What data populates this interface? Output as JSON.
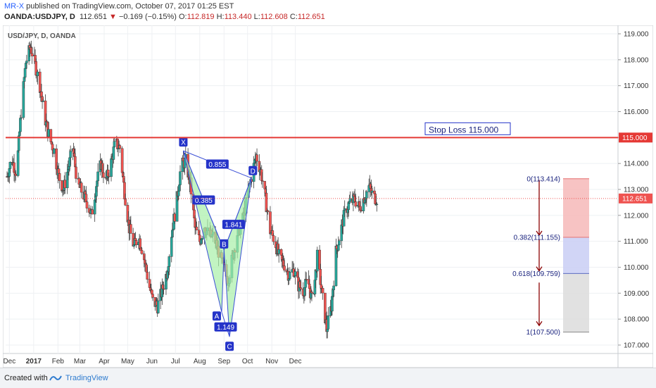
{
  "header": {
    "author": "MR-X",
    "published": "published on TradingView.com, October 07, 2017 01:25 EST",
    "symbol": "OANDA:USDJPY, D",
    "last": "112.651",
    "change": "−0.169 (−0.15%)",
    "o_label": "O:",
    "o_value": "112.819",
    "h_label": "H:",
    "h_value": "113.440",
    "l_label": "L:",
    "l_value": "112.608",
    "c_label": "C:",
    "c_value": "112.651"
  },
  "footer": {
    "created": "Created with",
    "brand": "TradingView"
  },
  "colors": {
    "up": "#26a69a",
    "down": "#ef5350",
    "pattern_fill": "#a8f0a8",
    "pattern_line": "#3a4fd6",
    "stop": "#e53935",
    "fib_arrow": "#8b0000"
  },
  "chart_data": {
    "type": "candlestick",
    "instrument_label": "USD/JPY, D, OANDA",
    "price_axis": {
      "min": 107.0,
      "max": 119.0,
      "ticks": [
        "119.000",
        "118.000",
        "117.000",
        "116.000",
        "115.000",
        "114.000",
        "113.000",
        "112.000",
        "111.000",
        "110.000",
        "109.000",
        "108.000",
        "107.000"
      ]
    },
    "time_axis": {
      "labels": [
        "Dec",
        "2017",
        "Feb",
        "Mar",
        "Apr",
        "May",
        "Jun",
        "Jul",
        "Aug",
        "Sep",
        "Oct",
        "Nov",
        "Dec"
      ],
      "bold_labels": [
        "2017"
      ]
    },
    "price_tags": [
      {
        "value": 115.0,
        "text": "115.000",
        "color": "#e53935"
      },
      {
        "value": 112.651,
        "text": "112.651",
        "color": "#ef5350"
      }
    ],
    "stop_loss": {
      "value": 115.0,
      "label": "Stop Loss 115.000"
    },
    "last_price": 112.651,
    "pattern": {
      "points": [
        {
          "name": "X",
          "date": "2017-07-11",
          "price": 114.49
        },
        {
          "name": "A",
          "date": "2017-08-29",
          "price": 108.27
        },
        {
          "name": "B",
          "date": "2017-09-01",
          "price": 110.67
        },
        {
          "name": "C",
          "date": "2017-09-08",
          "price": 107.32
        },
        {
          "name": "D",
          "date": "2017-10-06",
          "price": 113.44
        }
      ],
      "ratios": [
        {
          "text": "0.855",
          "at": "X-D"
        },
        {
          "text": "0.385",
          "at": "X-B"
        },
        {
          "text": "1.149",
          "at": "A-C"
        },
        {
          "text": "1.841",
          "at": "B-D"
        }
      ]
    },
    "fib_targets": [
      {
        "text": "0(113.414)",
        "price": 113.414,
        "zone_color": "#f6b8b8"
      },
      {
        "text": "0.382(111.155)",
        "price": 111.155,
        "zone_color": "#c9cef5"
      },
      {
        "text": "0.618(109.759)",
        "price": 109.759,
        "zone_color": "#dcdcdc"
      },
      {
        "text": "1(107.500)",
        "price": 107.5
      }
    ],
    "path": [
      [
        0,
        113.5
      ],
      [
        6,
        114.2
      ],
      [
        12,
        113.6
      ],
      [
        18,
        116.0
      ],
      [
        24,
        117.9
      ],
      [
        30,
        118.5
      ],
      [
        36,
        117.8
      ],
      [
        42,
        117.0
      ],
      [
        48,
        115.8
      ],
      [
        54,
        115.0
      ],
      [
        60,
        114.5
      ],
      [
        66,
        113.5
      ],
      [
        72,
        113.0
      ],
      [
        78,
        113.8
      ],
      [
        84,
        114.6
      ],
      [
        90,
        113.2
      ],
      [
        96,
        112.9
      ],
      [
        102,
        112.5
      ],
      [
        108,
        112.0
      ],
      [
        114,
        113.2
      ],
      [
        120,
        114.0
      ],
      [
        126,
        113.3
      ],
      [
        132,
        113.9
      ],
      [
        138,
        114.8
      ],
      [
        144,
        114.6
      ],
      [
        150,
        112.9
      ],
      [
        156,
        111.5
      ],
      [
        162,
        110.8
      ],
      [
        168,
        111.2
      ],
      [
        174,
        110.5
      ],
      [
        180,
        109.5
      ],
      [
        186,
        108.7
      ],
      [
        192,
        108.5
      ],
      [
        198,
        109.1
      ],
      [
        204,
        109.8
      ],
      [
        210,
        111.3
      ],
      [
        216,
        112.4
      ],
      [
        222,
        113.9
      ],
      [
        228,
        114.1
      ],
      [
        234,
        113.2
      ],
      [
        240,
        111.5
      ],
      [
        246,
        111.0
      ],
      [
        252,
        111.6
      ],
      [
        258,
        111.2
      ],
      [
        264,
        111.2
      ],
      [
        270,
        110.6
      ],
      [
        276,
        110.0
      ],
      [
        282,
        109.5
      ],
      [
        288,
        110.4
      ],
      [
        294,
        111.3
      ],
      [
        300,
        111.7
      ],
      [
        306,
        112.6
      ],
      [
        312,
        113.5
      ],
      [
        318,
        114.3
      ],
      [
        324,
        113.7
      ],
      [
        330,
        112.6
      ],
      [
        336,
        111.4
      ],
      [
        342,
        111.0
      ],
      [
        348,
        110.3
      ],
      [
        354,
        110.1
      ],
      [
        360,
        109.7
      ],
      [
        366,
        109.9
      ],
      [
        372,
        109.3
      ],
      [
        378,
        109.1
      ],
      [
        384,
        109.5
      ],
      [
        390,
        108.6
      ],
      [
        396,
        110.4
      ],
      [
        402,
        109.0
      ],
      [
        408,
        107.6
      ],
      [
        414,
        108.5
      ],
      [
        420,
        110.6
      ],
      [
        426,
        111.4
      ],
      [
        432,
        112.2
      ],
      [
        438,
        112.5
      ],
      [
        444,
        112.6
      ],
      [
        450,
        112.3
      ],
      [
        456,
        112.7
      ],
      [
        462,
        113.1
      ],
      [
        468,
        112.7
      ],
      [
        472,
        112.65
      ]
    ]
  }
}
